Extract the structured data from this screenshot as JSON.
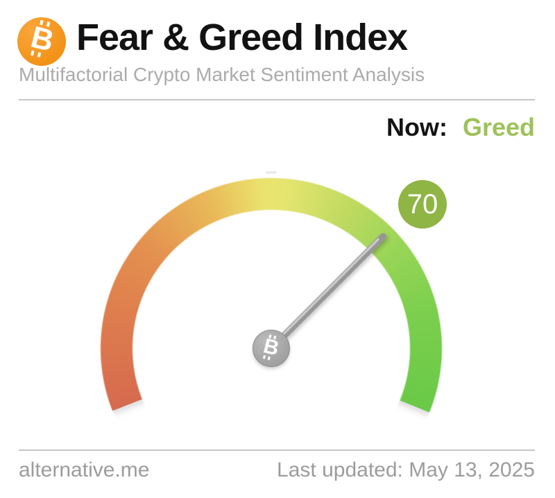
{
  "header": {
    "title": "Fear & Greed Index",
    "subtitle": "Multifactorial Crypto Market Sentiment Analysis",
    "logo_icon": "bitcoin-icon",
    "logo_color": "#f7931a"
  },
  "status": {
    "label": "Now:",
    "classification": "Greed",
    "classification_color": "#9dc25a"
  },
  "chart_data": {
    "type": "gauge",
    "title": "Fear & Greed Index",
    "value": 70,
    "min": 0,
    "max": 100,
    "classification": "Greed",
    "sweep_deg": 223.5,
    "badge_color": "#8fb545",
    "needle_color": "#a5a5a5",
    "scale_colors": {
      "start_red": "#d66a4e",
      "mid_orange": "#e4904f",
      "top_yellow": "#eae26e",
      "mid_green": "#98d557",
      "end_green": "#69c947"
    },
    "center_icon": "bitcoin-icon"
  },
  "footer": {
    "site": "alternative.me",
    "last_updated": "Last updated: May 13, 2025"
  }
}
